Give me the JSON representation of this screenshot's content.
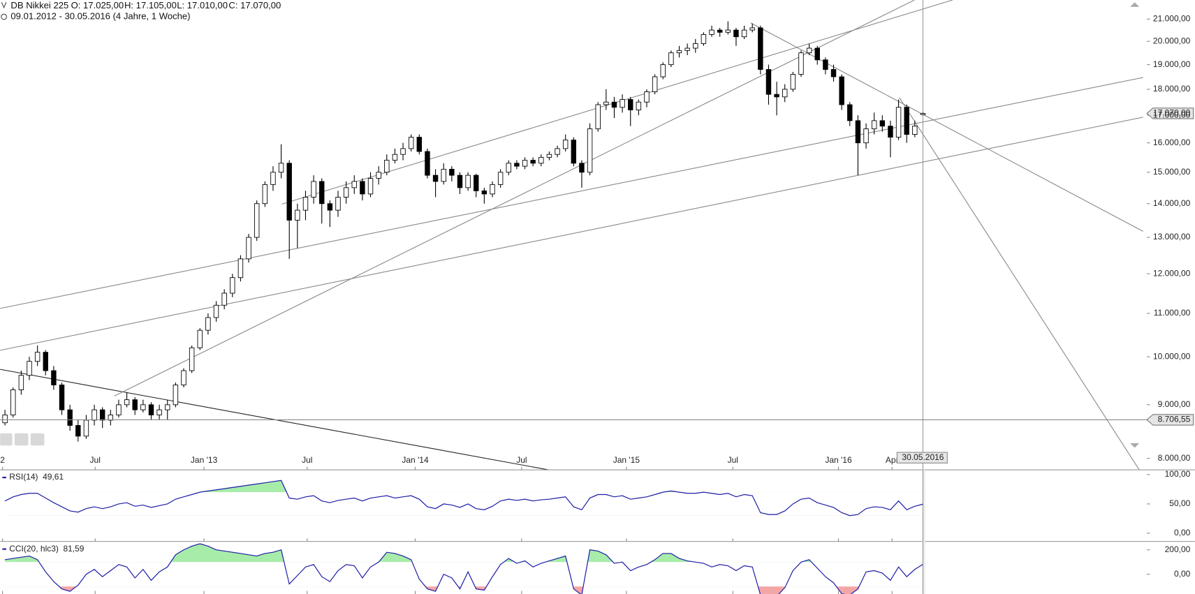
{
  "chart_data": [
    {
      "type": "candlestick",
      "title": "DB Nikkei 225",
      "ohlc_header": [
        "O: 17.025,00",
        "H: 17.105,00",
        "L: 17.010,00",
        "C: 17.070,00"
      ],
      "subtitle": "09.01.2012 - 30.05.2016 (4 Jahre, 1 Woche)",
      "log": true,
      "up_color": "#ffffff",
      "down_color": "#000000",
      "xlim": [
        -0.6,
        140.1
      ],
      "xticks": [
        {
          "value": -0.3,
          "label": "2"
        },
        {
          "value": 11.1,
          "label": "Jul"
        },
        {
          "value": 24.5,
          "label": "Jan '13"
        },
        {
          "value": 37.2,
          "label": "Jul"
        },
        {
          "value": 50.5,
          "label": "Jan '14"
        },
        {
          "value": 63.6,
          "label": "Jul"
        },
        {
          "value": 76.5,
          "label": "Jan '15"
        },
        {
          "value": 89.6,
          "label": "Jul"
        },
        {
          "value": 102.6,
          "label": "Jan '16"
        },
        {
          "value": 109.2,
          "label": "Apr"
        }
      ],
      "ylim": [
        7800,
        21900
      ],
      "yticks": [
        {
          "value": 8000,
          "label": "8.000,00"
        },
        {
          "value": 9000,
          "label": "9.000,00"
        },
        {
          "value": 10000,
          "label": "10.000,00"
        },
        {
          "value": 11000,
          "label": "11.000,00"
        },
        {
          "value": 12000,
          "label": "12.000,00"
        },
        {
          "value": 13000,
          "label": "13.000,00"
        },
        {
          "value": 14000,
          "label": "14.000,00"
        },
        {
          "value": 15000,
          "label": "15.000,00"
        },
        {
          "value": 16000,
          "label": "16.000,00"
        },
        {
          "value": 17000,
          "label": "17.000,00"
        },
        {
          "value": 18000,
          "label": "18.000,00"
        },
        {
          "value": 19000,
          "label": "19.000,00"
        },
        {
          "value": 20000,
          "label": "20.000,00"
        },
        {
          "value": 21000,
          "label": "21.000,00"
        }
      ],
      "last_price_label": "17.070,00",
      "reference_line": {
        "value": 8706.55,
        "label": "8.706,55"
      },
      "date_label": "30.05.2016",
      "candles": [
        [
          8650,
          8900,
          8600,
          8800
        ],
        [
          8800,
          9350,
          8750,
          9300
        ],
        [
          9300,
          9700,
          9200,
          9600
        ],
        [
          9600,
          10000,
          9500,
          9900
        ],
        [
          9900,
          10250,
          9800,
          10100
        ],
        [
          10100,
          10150,
          9600,
          9700
        ],
        [
          9700,
          9800,
          9300,
          9400
        ],
        [
          9400,
          9450,
          8800,
          8900
        ],
        [
          8900,
          9000,
          8500,
          8600
        ],
        [
          8600,
          8700,
          8300,
          8400
        ],
        [
          8400,
          8800,
          8350,
          8700
        ],
        [
          8700,
          9000,
          8600,
          8900
        ],
        [
          8900,
          8950,
          8550,
          8700
        ],
        [
          8700,
          8900,
          8600,
          8800
        ],
        [
          8800,
          9100,
          8750,
          9000
        ],
        [
          9000,
          9250,
          8950,
          9100
        ],
        [
          9100,
          9150,
          8800,
          8900
        ],
        [
          8900,
          9100,
          8850,
          9000
        ],
        [
          9000,
          9050,
          8700,
          8800
        ],
        [
          8800,
          9000,
          8700,
          8900
        ],
        [
          8900,
          9100,
          8700,
          9000
        ],
        [
          9000,
          9450,
          8950,
          9400
        ],
        [
          9400,
          9750,
          9350,
          9700
        ],
        [
          9700,
          10250,
          9650,
          10200
        ],
        [
          10200,
          10650,
          10150,
          10600
        ],
        [
          10600,
          11000,
          10500,
          10900
        ],
        [
          10900,
          11300,
          10800,
          11200
        ],
        [
          11200,
          11600,
          11100,
          11500
        ],
        [
          11500,
          12000,
          11400,
          11900
        ],
        [
          11900,
          12500,
          11800,
          12400
        ],
        [
          12400,
          13100,
          12300,
          13000
        ],
        [
          13000,
          14100,
          12900,
          14000
        ],
        [
          14000,
          14700,
          13900,
          14600
        ],
        [
          14600,
          15200,
          14400,
          15000
        ],
        [
          15000,
          15950,
          14800,
          15300
        ],
        [
          15300,
          15400,
          12400,
          13500
        ],
        [
          13500,
          14000,
          12700,
          13800
        ],
        [
          13800,
          14400,
          13500,
          14200
        ],
        [
          14200,
          14900,
          14000,
          14700
        ],
        [
          14700,
          14800,
          13400,
          14000
        ],
        [
          14000,
          14100,
          13300,
          13800
        ],
        [
          13800,
          14400,
          13600,
          14200
        ],
        [
          14200,
          14700,
          14000,
          14500
        ],
        [
          14500,
          14900,
          14300,
          14700
        ],
        [
          14700,
          14800,
          14100,
          14300
        ],
        [
          14300,
          15000,
          14200,
          14800
        ],
        [
          14800,
          15200,
          14600,
          15000
        ],
        [
          15000,
          15600,
          14900,
          15400
        ],
        [
          15400,
          15800,
          15300,
          15600
        ],
        [
          15600,
          16000,
          15400,
          15800
        ],
        [
          15800,
          16300,
          15700,
          16200
        ],
        [
          16200,
          16300,
          15600,
          15700
        ],
        [
          15700,
          15800,
          14800,
          14900
        ],
        [
          14900,
          15100,
          14200,
          14700
        ],
        [
          14700,
          15300,
          14600,
          15100
        ],
        [
          15100,
          15200,
          14700,
          14900
        ],
        [
          14900,
          15000,
          14300,
          14500
        ],
        [
          14500,
          15000,
          14400,
          14900
        ],
        [
          14900,
          14950,
          14200,
          14400
        ],
        [
          14400,
          14500,
          14000,
          14300
        ],
        [
          14300,
          14700,
          14200,
          14600
        ],
        [
          14600,
          15100,
          14500,
          15000
        ],
        [
          15000,
          15400,
          14900,
          15300
        ],
        [
          15300,
          15400,
          15100,
          15200
        ],
        [
          15200,
          15500,
          15100,
          15400
        ],
        [
          15400,
          15500,
          15200,
          15300
        ],
        [
          15300,
          15600,
          15200,
          15500
        ],
        [
          15500,
          15700,
          15400,
          15600
        ],
        [
          15600,
          15900,
          15500,
          15800
        ],
        [
          15800,
          16300,
          15700,
          16100
        ],
        [
          16100,
          16200,
          15200,
          15300
        ],
        [
          15300,
          15400,
          14500,
          15000
        ],
        [
          15000,
          16700,
          14900,
          16500
        ],
        [
          16500,
          17500,
          16400,
          17400
        ],
        [
          17400,
          18000,
          17200,
          17500
        ],
        [
          17500,
          17700,
          16900,
          17300
        ],
        [
          17300,
          17800,
          17100,
          17600
        ],
        [
          17600,
          17700,
          16600,
          17200
        ],
        [
          17200,
          17600,
          17000,
          17500
        ],
        [
          17500,
          18000,
          17300,
          17900
        ],
        [
          17900,
          18600,
          17800,
          18500
        ],
        [
          18500,
          19100,
          18400,
          19000
        ],
        [
          19000,
          19600,
          18900,
          19500
        ],
        [
          19500,
          19800,
          19300,
          19600
        ],
        [
          19600,
          19900,
          19400,
          19700
        ],
        [
          19700,
          20100,
          19500,
          19900
        ],
        [
          19900,
          20400,
          19800,
          20300
        ],
        [
          20300,
          20700,
          20200,
          20500
        ],
        [
          20500,
          20600,
          20200,
          20400
        ],
        [
          20400,
          20900,
          20300,
          20500
        ],
        [
          20500,
          20600,
          19800,
          20200
        ],
        [
          20200,
          20700,
          20100,
          20500
        ],
        [
          20500,
          20800,
          20400,
          20600
        ],
        [
          20600,
          20700,
          18600,
          18800
        ],
        [
          18800,
          19000,
          17400,
          17800
        ],
        [
          17800,
          18300,
          17000,
          17700
        ],
        [
          17700,
          18200,
          17500,
          18000
        ],
        [
          18000,
          18700,
          17900,
          18600
        ],
        [
          18600,
          19600,
          18500,
          19500
        ],
        [
          19500,
          19900,
          19400,
          19700
        ],
        [
          19700,
          19800,
          19000,
          19200
        ],
        [
          19200,
          19300,
          18600,
          18800
        ],
        [
          18800,
          19000,
          18300,
          18500
        ],
        [
          18500,
          18600,
          17200,
          17400
        ],
        [
          17400,
          17500,
          16600,
          16800
        ],
        [
          16800,
          17000,
          14900,
          16000
        ],
        [
          16000,
          16700,
          15800,
          16500
        ],
        [
          16500,
          17100,
          16300,
          16800
        ],
        [
          16800,
          17000,
          16400,
          16600
        ],
        [
          16600,
          16800,
          15500,
          16200
        ],
        [
          16200,
          17600,
          16100,
          17300
        ],
        [
          17300,
          17400,
          16000,
          16300
        ],
        [
          16300,
          16800,
          16200,
          16600
        ],
        [
          17025,
          17105,
          17010,
          17070
        ]
      ]
    },
    {
      "type": "line",
      "name": "RSI(14)",
      "value_label": "49,61",
      "color": "#1c1ca8",
      "ylim": [
        -14,
        108
      ],
      "yticks": [
        {
          "value": 100,
          "label": "100,00"
        },
        {
          "value": 50,
          "label": "50,00"
        },
        {
          "value": 0,
          "label": "0,00"
        }
      ],
      "upper": 70,
      "lower": 30,
      "upper_color": "#a8ecaa",
      "lower_color": "#f3a6a6",
      "values": [
        55,
        62,
        66,
        68,
        68,
        60,
        52,
        45,
        38,
        36,
        42,
        45,
        42,
        45,
        50,
        52,
        46,
        48,
        44,
        47,
        50,
        58,
        62,
        66,
        70,
        72,
        74,
        76,
        78,
        80,
        82,
        84,
        86,
        88,
        90,
        60,
        58,
        62,
        64,
        55,
        52,
        56,
        58,
        60,
        55,
        60,
        62,
        64,
        60,
        62,
        64,
        58,
        45,
        42,
        50,
        48,
        44,
        50,
        42,
        40,
        46,
        55,
        58,
        56,
        58,
        55,
        57,
        58,
        60,
        62,
        45,
        40,
        60,
        66,
        66,
        62,
        64,
        58,
        60,
        62,
        66,
        70,
        72,
        70,
        68,
        68,
        70,
        68,
        66,
        68,
        62,
        66,
        64,
        35,
        32,
        32,
        38,
        50,
        58,
        60,
        52,
        48,
        44,
        35,
        30,
        32,
        42,
        45,
        44,
        40,
        55,
        40,
        46,
        49.61
      ]
    },
    {
      "type": "line",
      "name": "CCI(20, hlc3)",
      "value_label": "81,59",
      "color": "#1c1ca8",
      "ylim": [
        -162,
        269
      ],
      "yticks": [
        {
          "value": 200,
          "label": "200,00"
        },
        {
          "value": 0,
          "label": "0,00"
        }
      ],
      "upper": 100,
      "lower": -100,
      "upper_color": "#a8ecaa",
      "lower_color": "#f3a6a6",
      "values": [
        120,
        130,
        140,
        150,
        120,
        20,
        -60,
        -120,
        -140,
        -90,
        0,
        40,
        -20,
        30,
        80,
        60,
        -30,
        40,
        -50,
        20,
        60,
        160,
        200,
        230,
        250,
        230,
        200,
        190,
        180,
        170,
        160,
        150,
        170,
        180,
        200,
        -80,
        -10,
        60,
        80,
        -20,
        -60,
        30,
        80,
        70,
        -30,
        60,
        100,
        180,
        170,
        150,
        120,
        -40,
        -120,
        -140,
        0,
        -30,
        -120,
        20,
        -120,
        -130,
        -20,
        80,
        130,
        90,
        110,
        60,
        90,
        110,
        130,
        150,
        -120,
        -170,
        200,
        190,
        160,
        90,
        100,
        30,
        60,
        80,
        120,
        170,
        170,
        130,
        110,
        100,
        90,
        60,
        80,
        70,
        30,
        70,
        60,
        -170,
        -200,
        -180,
        -110,
        30,
        100,
        120,
        50,
        -20,
        -70,
        -160,
        -170,
        -120,
        20,
        30,
        10,
        -50,
        60,
        -20,
        40,
        81.59
      ]
    }
  ]
}
